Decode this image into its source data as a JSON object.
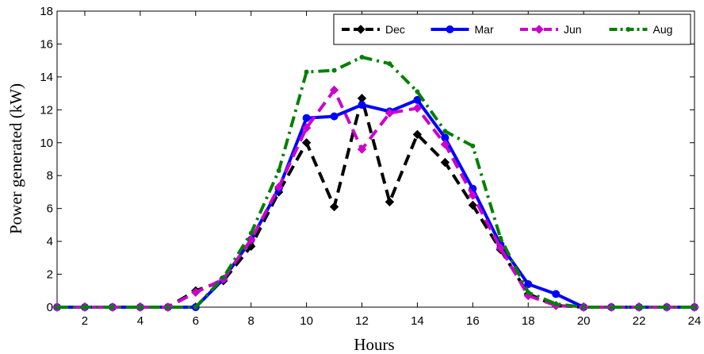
{
  "chart_data": {
    "type": "line",
    "xlabel": "Hours",
    "ylabel": "Power generated (kW)",
    "xlim": [
      1,
      24
    ],
    "ylim": [
      0,
      18
    ],
    "xticks": [
      2,
      4,
      6,
      8,
      10,
      12,
      14,
      16,
      18,
      20,
      22,
      24
    ],
    "yticks": [
      0,
      2,
      4,
      6,
      8,
      10,
      12,
      14,
      16,
      18
    ],
    "grid": false,
    "legend_position": "top-right",
    "x": [
      1,
      2,
      3,
      4,
      5,
      6,
      7,
      8,
      9,
      10,
      11,
      12,
      13,
      14,
      15,
      16,
      17,
      18,
      19,
      20,
      21,
      22,
      23,
      24
    ],
    "series": [
      {
        "name": "Dec",
        "color": "#000000",
        "line": "dashed",
        "marker": "diamond",
        "values": [
          0,
          0,
          0,
          0,
          0,
          1.0,
          1.6,
          3.7,
          7.0,
          10.0,
          6.1,
          12.7,
          6.4,
          10.5,
          8.8,
          6.2,
          3.5,
          0.8,
          0.1,
          0,
          0,
          0,
          0,
          0
        ]
      },
      {
        "name": "Mar",
        "color": "#0000ff",
        "line": "solid",
        "marker": "circle",
        "values": [
          0,
          0,
          0,
          0,
          0,
          0,
          1.7,
          4.1,
          7.2,
          11.5,
          11.6,
          12.3,
          11.9,
          12.6,
          10.3,
          7.2,
          3.8,
          1.4,
          0.8,
          0,
          0,
          0,
          0,
          0
        ]
      },
      {
        "name": "Jun",
        "color": "#cc00cc",
        "line": "dashed",
        "marker": "diamond",
        "values": [
          0,
          0,
          0,
          0,
          0,
          0.9,
          1.7,
          4.1,
          7.3,
          10.9,
          13.2,
          9.6,
          11.8,
          12.1,
          9.9,
          6.8,
          3.6,
          0.7,
          0.1,
          0,
          0,
          0,
          0,
          0
        ]
      },
      {
        "name": "Aug",
        "color": "#008000",
        "line": "dashdot",
        "marker": "dot",
        "values": [
          0,
          0,
          0,
          0,
          0,
          0,
          1.8,
          4.5,
          8.3,
          14.3,
          14.4,
          15.2,
          14.8,
          13.1,
          10.7,
          9.8,
          4.2,
          0.9,
          0.2,
          0,
          0,
          0,
          0,
          0
        ]
      }
    ]
  }
}
